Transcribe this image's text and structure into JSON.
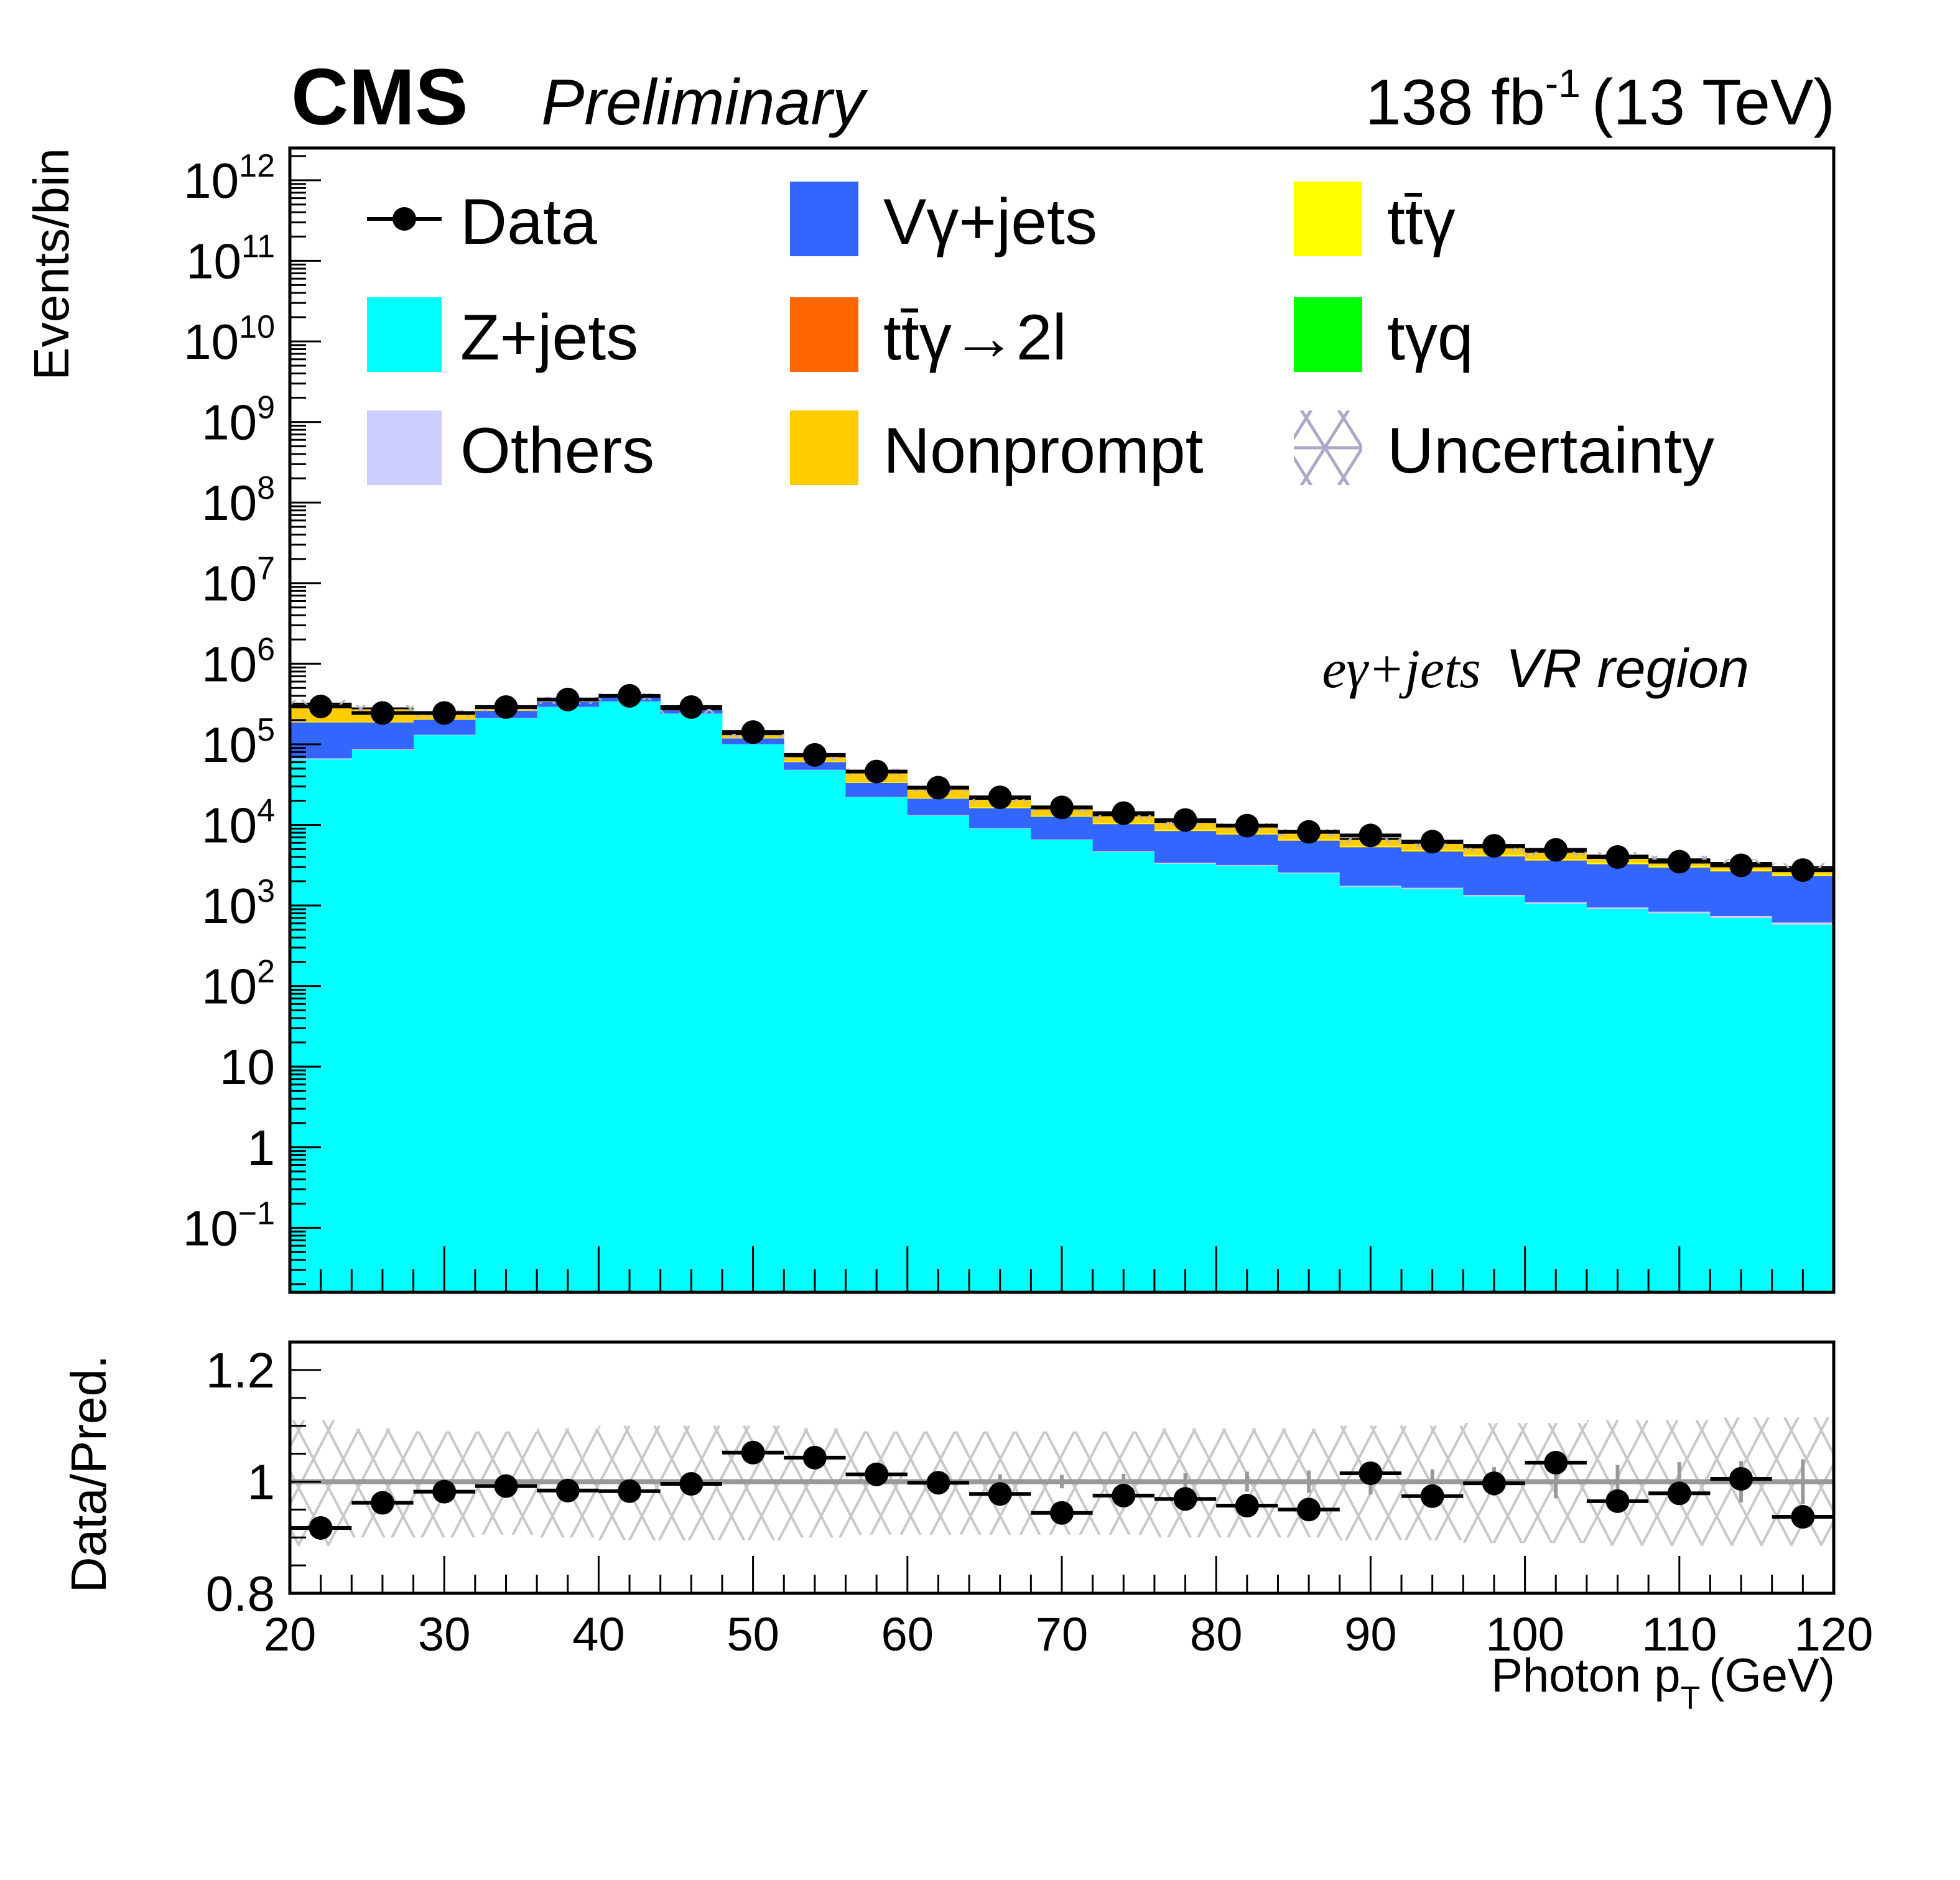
{
  "header": {
    "experiment": "CMS",
    "status": "Preliminary",
    "lumi_value": "138 fb",
    "lumi_exp": "-1",
    "energy": "(13 TeV)"
  },
  "annotation": {
    "process": "eγ+jets",
    "region": "VR region"
  },
  "legend": [
    {
      "key": "data",
      "label": "Data",
      "style": "marker",
      "color": "#000000"
    },
    {
      "key": "vgamma",
      "label": "Vγ+jets",
      "style": "fill",
      "color": "#3366ff"
    },
    {
      "key": "ttgamma",
      "label": "tt̄γ",
      "style": "fill",
      "color": "#ffff00"
    },
    {
      "key": "zjets",
      "label": "Z+jets",
      "style": "fill",
      "color": "#00ffff"
    },
    {
      "key": "ttgamma2l",
      "label": "tt̄γ→2l",
      "style": "fill",
      "color": "#ff6600"
    },
    {
      "key": "tgq",
      "label": "tγq",
      "style": "fill",
      "color": "#00ff00"
    },
    {
      "key": "others",
      "label": "Others",
      "style": "fill",
      "color": "#ccccff"
    },
    {
      "key": "nonprompt",
      "label": "Nonprompt",
      "style": "fill",
      "color": "#ffcc00"
    },
    {
      "key": "unc",
      "label": "Uncertainty",
      "style": "hatch",
      "color": "#aaaacc"
    }
  ],
  "chart_data": [
    {
      "type": "bar",
      "subtype": "stacked-histogram-log",
      "title": "",
      "xlabel": "Photon p_T (GeV)",
      "ylabel": "Events/bin",
      "xlim": [
        20,
        120
      ],
      "ylim_log10": [
        -1.8,
        12.4
      ],
      "y_ticks": [
        {
          "exp": -1,
          "label": "10",
          "sup": "−1"
        },
        {
          "exp": 0,
          "label": "1",
          "sup": ""
        },
        {
          "exp": 1,
          "label": "10",
          "sup": ""
        },
        {
          "exp": 2,
          "label": "10",
          "sup": "2"
        },
        {
          "exp": 3,
          "label": "10",
          "sup": "3"
        },
        {
          "exp": 4,
          "label": "10",
          "sup": "4"
        },
        {
          "exp": 5,
          "label": "10",
          "sup": "5"
        },
        {
          "exp": 6,
          "label": "10",
          "sup": "6"
        },
        {
          "exp": 7,
          "label": "10",
          "sup": "7"
        },
        {
          "exp": 8,
          "label": "10",
          "sup": "8"
        },
        {
          "exp": 9,
          "label": "10",
          "sup": "9"
        },
        {
          "exp": 10,
          "label": "10",
          "sup": "10"
        },
        {
          "exp": 11,
          "label": "10",
          "sup": "11"
        },
        {
          "exp": 12,
          "label": "10",
          "sup": "12"
        }
      ],
      "bin_edges": [
        20,
        24,
        28,
        32,
        36,
        40,
        44,
        48,
        52,
        56,
        60,
        64,
        68,
        72,
        76,
        80,
        84,
        88,
        92,
        96,
        100,
        104,
        108,
        112,
        116,
        120
      ],
      "bin_centers": [
        22,
        26,
        30,
        34,
        38,
        42,
        46,
        50,
        54,
        58,
        62,
        66,
        70,
        74,
        78,
        82,
        86,
        90,
        94,
        98,
        102,
        106,
        110,
        114,
        118
      ],
      "series": [
        {
          "name": "Z+jets",
          "key": "zjets",
          "values": [
            65000.0,
            85000.0,
            130000.0,
            210000.0,
            290000.0,
            340000.0,
            240000.0,
            100000.0,
            48000.0,
            22000.0,
            13000.0,
            9000.0,
            6500.0,
            4600.0,
            3300.0,
            3100.0,
            2500.0,
            1700.0,
            1600.0,
            1300.0,
            1050.0,
            900.0,
            800.0,
            700.0,
            580.0
          ]
        },
        {
          "name": "Others",
          "key": "others",
          "values": [
            2000.0,
            2000.0,
            1500.0,
            1500.0,
            1200.0,
            1000.0,
            800.0,
            500.0,
            300.0,
            200.0,
            150.0,
            120.0,
            100.0,
            100.0,
            80.0,
            80.0,
            70.0,
            60.0,
            60.0,
            50.0,
            50.0,
            45.0,
            40.0,
            40.0,
            35.0
          ]
        },
        {
          "name": "Vγ+jets",
          "key": "vgamma",
          "values": [
            120000.0,
            100000.0,
            70000.0,
            50000.0,
            45000.0,
            40000.0,
            23000.0,
            18000.0,
            12000.0,
            11000.0,
            8000.0,
            7000.0,
            6000.0,
            5500.0,
            5000.0,
            4400.0,
            3800.0,
            3500.0,
            3000.0,
            2700.0,
            2500.0,
            2300.0,
            2100.0,
            1900.0,
            1700.0
          ]
        },
        {
          "name": "tt̄γ→2l",
          "key": "ttgamma2l",
          "values": [
            500.0,
            400.0,
            300.0,
            300.0,
            250.0,
            250.0,
            200.0,
            150.0,
            120.0,
            100.0,
            90.0,
            80.0,
            70.0,
            65.0,
            60.0,
            55.0,
            50.0,
            45.0,
            40.0,
            38.0,
            35.0,
            32.0,
            30.0,
            28.0,
            25.0
          ]
        },
        {
          "name": "tγq",
          "key": "tgq",
          "values": [
            50.0,
            45.0,
            40.0,
            35.0,
            30.0,
            30.0,
            25.0,
            20.0,
            18.0,
            15.0,
            14.0,
            12.0,
            10.0,
            9.0,
            8.0,
            7.5,
            7.0,
            6.5,
            6.0,
            5.5,
            5.0,
            4.8,
            4.5,
            4.2,
            4.0
          ]
        },
        {
          "name": "tt̄γ",
          "key": "ttgamma",
          "values": [
            3000.0,
            2500.0,
            2000.0,
            1800.0,
            1600.0,
            1500.0,
            1200.0,
            900.0,
            700.0,
            550.0,
            450.0,
            380.0,
            320.0,
            280.0,
            250.0,
            220.0,
            200.0,
            180.0,
            160.0,
            150.0,
            140.0,
            130.0,
            120.0,
            110.0,
            100.0
          ]
        },
        {
          "name": "Nonprompt",
          "key": "nonprompt",
          "values": [
            130000.0,
            90000.0,
            40000.0,
            20000.0,
            15000.0,
            10000.0,
            6000.0,
            14000.0,
            10000.0,
            12000.0,
            6500.0,
            4500.0,
            3000.0,
            2600.0,
            2200.0,
            1800.0,
            1500.0,
            1200.0,
            1100.0,
            1000.0,
            850.0,
            750.0,
            650.0,
            600.0,
            550.0
          ]
        }
      ],
      "data": {
        "name": "Data",
        "values": [
          295000.0,
          245000.0,
          245000.0,
          290000.0,
          360000.0,
          400000.0,
          290000.0,
          142000.0,
          74000.0,
          46000.0,
          29000.0,
          22000.0,
          16500.0,
          14000.0,
          11500.0,
          9800.0,
          8200.0,
          7400.0,
          6200.0,
          5500.0,
          4900.0,
          4000.0,
          3500.0,
          3150.0,
          2750.0
        ]
      }
    },
    {
      "type": "scatter",
      "subtype": "ratio-with-uncertainty-band",
      "xlabel": "Photon p_T (GeV)",
      "ylabel": "Data/Pred.",
      "xlim": [
        20,
        120
      ],
      "ylim": [
        0.8,
        1.25
      ],
      "y_ticks": [
        {
          "value": 0.8,
          "label": "0.8"
        },
        {
          "value": 1.0,
          "label": "1"
        },
        {
          "value": 1.2,
          "label": "1.2"
        }
      ],
      "x_ticks": [
        {
          "value": 20,
          "label": "20"
        },
        {
          "value": 30,
          "label": "30"
        },
        {
          "value": 40,
          "label": "40"
        },
        {
          "value": 50,
          "label": "50"
        },
        {
          "value": 60,
          "label": "60"
        },
        {
          "value": 70,
          "label": "70"
        },
        {
          "value": 80,
          "label": "80"
        },
        {
          "value": 90,
          "label": "90"
        },
        {
          "value": 100,
          "label": "100"
        },
        {
          "value": 110,
          "label": "110"
        },
        {
          "value": 120,
          "label": "120"
        }
      ],
      "reference_line": 1.0,
      "x": [
        22,
        26,
        30,
        34,
        38,
        42,
        46,
        50,
        54,
        58,
        62,
        66,
        70,
        74,
        78,
        82,
        86,
        90,
        94,
        98,
        102,
        106,
        110,
        114,
        118
      ],
      "ratio": [
        0.917,
        0.962,
        0.982,
        0.992,
        0.984,
        0.983,
        0.996,
        1.052,
        1.043,
        1.013,
        0.998,
        0.978,
        0.944,
        0.975,
        0.969,
        0.957,
        0.95,
        1.015,
        0.974,
        0.997,
        1.034,
        0.965,
        0.979,
        1.005,
        0.937
      ],
      "mc_stat_err": [
        0.001,
        0.001,
        0.001,
        0.001,
        0.001,
        0.001,
        0.001,
        0.002,
        0.003,
        0.008,
        0.01,
        0.013,
        0.012,
        0.014,
        0.015,
        0.018,
        0.02,
        0.023,
        0.022,
        0.026,
        0.03,
        0.03,
        0.035,
        0.037,
        0.04
      ],
      "syst_band_up": [
        1.11,
        1.095,
        1.09,
        1.09,
        1.095,
        1.1,
        1.1,
        1.1,
        1.095,
        1.09,
        1.09,
        1.09,
        1.09,
        1.09,
        1.095,
        1.095,
        1.095,
        1.1,
        1.1,
        1.105,
        1.105,
        1.11,
        1.11,
        1.115,
        1.115
      ],
      "syst_band_down": [
        0.885,
        0.9,
        0.9,
        0.905,
        0.9,
        0.895,
        0.895,
        0.895,
        0.9,
        0.905,
        0.905,
        0.905,
        0.905,
        0.905,
        0.9,
        0.9,
        0.9,
        0.895,
        0.895,
        0.89,
        0.89,
        0.885,
        0.885,
        0.885,
        0.885
      ]
    }
  ]
}
